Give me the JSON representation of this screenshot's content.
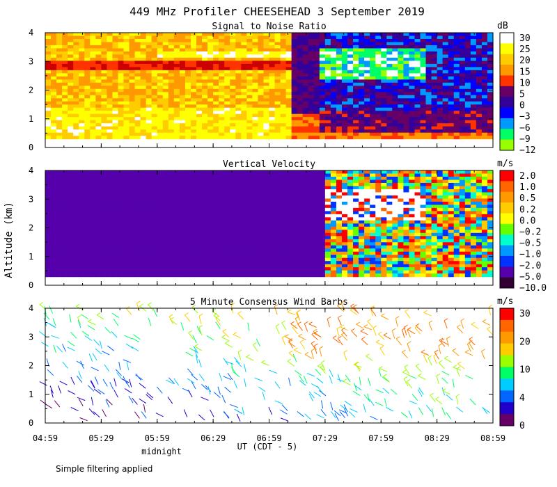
{
  "chart_data": {
    "type": "heatmap",
    "title": "449 MHz Profiler CHEESEHEAD  3 September 2019",
    "ylabel": "Altitude (km)",
    "xlabel": "UT  (CDT - 5)",
    "x_ticks": [
      "04:59",
      "05:29",
      "05:59",
      "06:29",
      "06:59",
      "07:29",
      "07:59",
      "08:29",
      "08:59"
    ],
    "x_annotation": "midnight",
    "x_range_minutes": [
      0,
      240
    ],
    "ylim": [
      0,
      4
    ],
    "y_ticks": [
      "0",
      "1",
      "2",
      "3",
      "4"
    ],
    "panels": [
      {
        "title": "Signal to Noise Ratio",
        "unit": "dB",
        "scale_labels": [
          "30",
          "25",
          "20",
          "15",
          "10",
          "5",
          "0",
          "−3",
          "−6",
          "−9",
          "−12"
        ],
        "scale_colors": [
          "#ffffff",
          "#ffff00",
          "#ffcc00",
          "#ff9900",
          "#ff3300",
          "#660066",
          "#330099",
          "#0000ff",
          "#0099ff",
          "#00ff66",
          "#99ff00"
        ]
      },
      {
        "title": "Vertical Velocity",
        "unit": "m/s",
        "scale_labels": [
          "2.0",
          "1.0",
          "0.5",
          "0.2",
          "0.0",
          "−0.2",
          "−0.5",
          "−1.0",
          "−2.0",
          "−5.0",
          "−10.0"
        ],
        "scale_colors": [
          "#ff0000",
          "#ff6600",
          "#ff9900",
          "#ffcc00",
          "#ffff00",
          "#66ff00",
          "#00ffcc",
          "#0099ff",
          "#0033ff",
          "#5500aa",
          "#330033"
        ]
      },
      {
        "title": "5 Minute Consensus Wind Barbs",
        "unit": "m/s",
        "scale_labels": [
          "30",
          "20",
          "10",
          "4",
          "0"
        ],
        "scale_colors": [
          "#ff0000",
          "#ff6600",
          "#ff9900",
          "#ffcc00",
          "#99ff00",
          "#00ff66",
          "#00ccff",
          "#0066ff",
          "#2200cc",
          "#660066"
        ]
      }
    ]
  },
  "footer": {
    "note": "Simple filtering applied"
  }
}
